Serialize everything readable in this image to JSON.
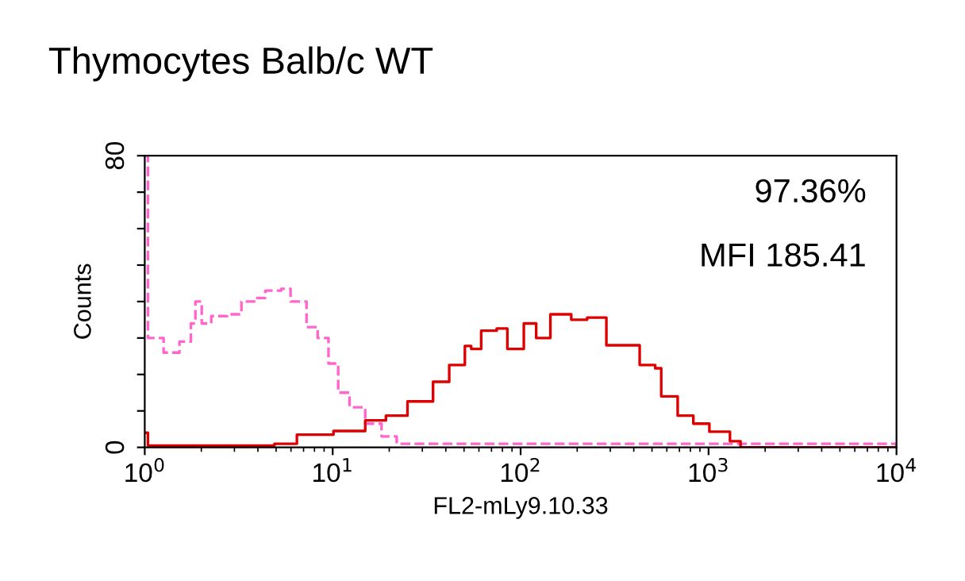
{
  "chart_data": {
    "type": "step",
    "title": "Thymocytes Balb/c WT",
    "xlabel": "FL2-mLy9.10.33",
    "ylabel": "Counts",
    "annotations": [
      "97.36%",
      "MFI 185.41"
    ],
    "log": "x",
    "grid": false,
    "xlim": [
      1,
      10000
    ],
    "xticks": [
      {
        "value": 1,
        "label": "10$^{0}$"
      },
      {
        "value": 10,
        "label": "10$^{1}$"
      },
      {
        "value": 100,
        "label": "10$^{2}$"
      },
      {
        "value": 1000,
        "label": "10$^{3}$"
      },
      {
        "value": 10000,
        "label": "10$^{4}$"
      }
    ],
    "ylim": [
      0,
      80
    ],
    "yticks": [
      0,
      {
        "value": 10,
        "label": null
      },
      {
        "value": 20,
        "label": null
      },
      {
        "value": 30,
        "label": null
      },
      {
        "value": 40,
        "label": null
      },
      {
        "value": 50,
        "label": null
      },
      {
        "value": 60,
        "label": null
      },
      {
        "value": 70,
        "label": null
      },
      80
    ],
    "series": [
      {
        "color": "#ff66cc",
        "line_style": "dashed",
        "x": [
          1,
          1.04,
          1.26,
          1.53,
          1.76,
          1.86,
          2.01,
          2.26,
          2.75,
          3.27,
          3.82,
          4.38,
          5.32,
          5.97,
          7.26,
          8.32,
          9.5,
          10.7,
          12.3,
          14.9,
          18.2,
          21.9,
          10000
        ],
        "values": [
          80,
          30,
          26,
          29,
          34,
          40,
          34,
          36,
          36.5,
          40,
          41,
          43,
          43.5,
          40,
          33,
          30,
          23,
          15,
          11,
          6.5,
          3,
          1,
          0
        ]
      },
      {
        "color": "#dd0000",
        "line_style": "solid",
        "x": [
          1,
          1.04,
          4.9,
          6.45,
          10.1,
          14.9,
          19.2,
          25,
          30.5,
          34.2,
          41.7,
          50.5,
          54.6,
          61.7,
          74.6,
          85,
          104,
          121,
          144,
          186,
          226,
          275,
          286,
          380,
          430,
          520,
          560,
          685,
          830,
          1010,
          1300,
          1480,
          10000
        ],
        "values": [
          4,
          0.5,
          1,
          3.5,
          4.5,
          7.4,
          8.7,
          12.6,
          12.6,
          18,
          22.6,
          27.8,
          27,
          32,
          32.6,
          27,
          34,
          30,
          36.5,
          35,
          35.6,
          35.6,
          28,
          28,
          22.6,
          21.7,
          14,
          8.7,
          6.5,
          4.3,
          1.7,
          0,
          0
        ]
      }
    ]
  }
}
